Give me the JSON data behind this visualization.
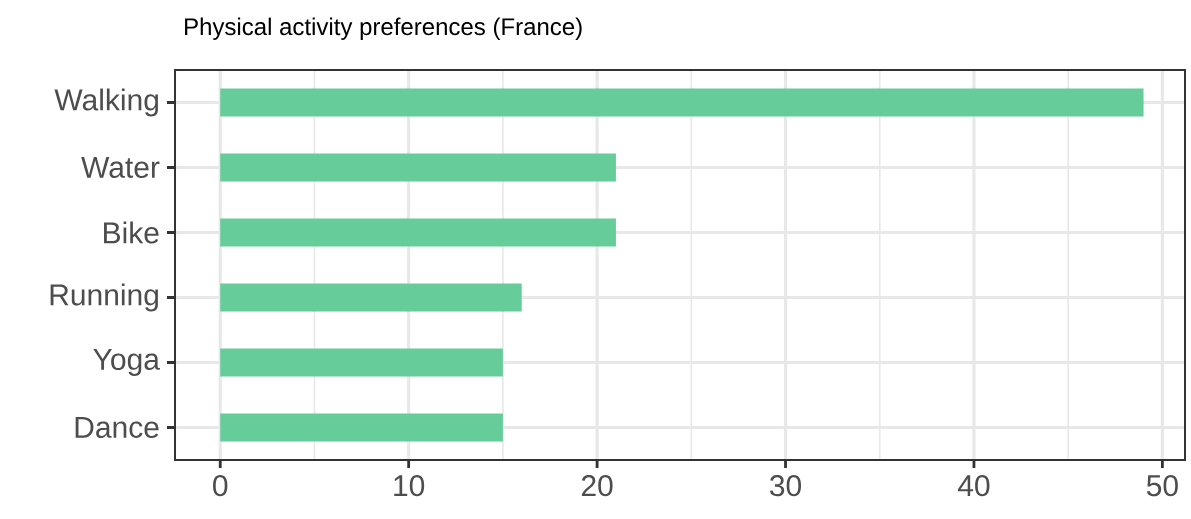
{
  "chart_data": {
    "type": "bar",
    "orientation": "horizontal",
    "title": "Physical activity preferences (France)",
    "categories": [
      "Walking",
      "Water",
      "Bike",
      "Running",
      "Yoga",
      "Dance"
    ],
    "values": [
      49,
      21,
      21,
      16,
      15,
      15
    ],
    "color": "#66cc99",
    "xlim": [
      -2.4,
      51.2
    ],
    "xticks": [
      0,
      10,
      20,
      30,
      40,
      50
    ],
    "grid": true
  }
}
